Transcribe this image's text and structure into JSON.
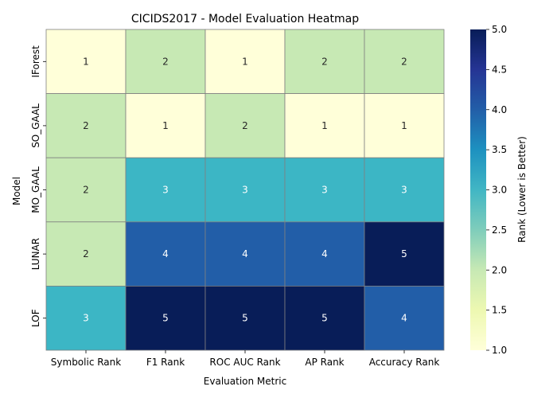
{
  "chart_data": {
    "type": "heatmap",
    "title": "CICIDS2017 - Model Evaluation Heatmap",
    "xlabel": "Evaluation Metric",
    "ylabel": "Model",
    "x_categories": [
      "Symbolic Rank",
      "F1 Rank",
      "ROC AUC Rank",
      "AP Rank",
      "Accuracy Rank"
    ],
    "y_categories": [
      "IForest",
      "SO_GAAL",
      "MO_GAAL",
      "LUNAR",
      "LOF"
    ],
    "values": [
      [
        1,
        2,
        1,
        2,
        2
      ],
      [
        2,
        1,
        2,
        1,
        1
      ],
      [
        2,
        3,
        3,
        3,
        3
      ],
      [
        2,
        4,
        4,
        4,
        5
      ],
      [
        3,
        5,
        5,
        5,
        4
      ]
    ],
    "colorbar": {
      "label": "Rank (Lower is Better)",
      "range": [
        1.0,
        5.0
      ],
      "ticks": [
        "1.0",
        "1.5",
        "2.0",
        "2.5",
        "3.0",
        "3.5",
        "4.0",
        "4.5",
        "5.0"
      ]
    },
    "colormap": "YlGnBu",
    "colors": {
      "1": "#ffffd9",
      "2": "#c7e9b4",
      "3": "#3cb6c5",
      "4": "#225ea8",
      "5": "#081d58",
      "grid_line": "#808080"
    }
  }
}
